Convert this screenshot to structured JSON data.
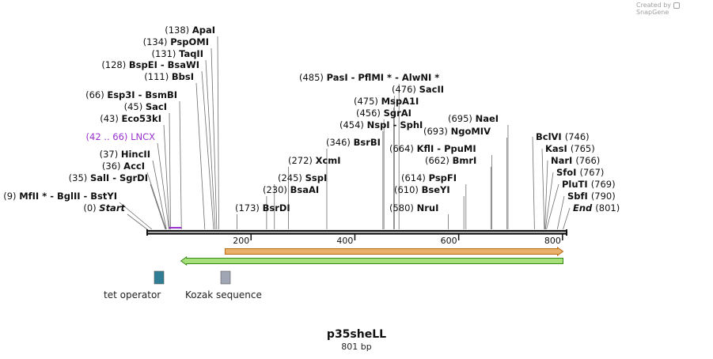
{
  "credit": {
    "text": "Created by",
    "brand": "SnapGene"
  },
  "plasmid": {
    "name": "p35sheLL",
    "length_label": "801 bp",
    "length": 801
  },
  "axis_ticks": [
    {
      "value": 200,
      "label": "200"
    },
    {
      "value": 400,
      "label": "400"
    },
    {
      "value": 600,
      "label": "600"
    },
    {
      "value": 800,
      "label": "800"
    }
  ],
  "left_labels": [
    {
      "pos": 0,
      "pos_label": "(0)",
      "name": "Start",
      "italic": true
    },
    {
      "pos": 9,
      "pos_label": "(9)",
      "name": "MfII * - BglII - BstYI"
    },
    {
      "pos": 35,
      "pos_label": "(35)",
      "name": "SalI - SgrDI"
    },
    {
      "pos": 36,
      "pos_label": "(36)",
      "name": "AccI"
    },
    {
      "pos": 37,
      "pos_label": "(37)",
      "name": "HincII"
    },
    {
      "pos": 42,
      "pos_label": "(42 .. 66)",
      "name": "LNCX",
      "feature": true
    },
    {
      "pos": 43,
      "pos_label": "(43)",
      "name": "Eco53kI"
    },
    {
      "pos": 45,
      "pos_label": "(45)",
      "name": "SacI"
    },
    {
      "pos": 66,
      "pos_label": "(66)",
      "name": "Esp3I - BsmBI"
    },
    {
      "pos": 111,
      "pos_label": "(111)",
      "name": "BbsI"
    },
    {
      "pos": 128,
      "pos_label": "(128)",
      "name": "BspEI - BsaWI"
    },
    {
      "pos": 131,
      "pos_label": "(131)",
      "name": "TaqII"
    },
    {
      "pos": 134,
      "pos_label": "(134)",
      "name": "PspOMI"
    },
    {
      "pos": 138,
      "pos_label": "(138)",
      "name": "ApaI"
    }
  ],
  "middle_labels": [
    {
      "pos": 173,
      "pos_label": "(173)",
      "name": "BsrDI"
    },
    {
      "pos": 230,
      "pos_label": "(230)",
      "name": "BsaAI"
    },
    {
      "pos": 245,
      "pos_label": "(245)",
      "name": "SspI"
    },
    {
      "pos": 272,
      "pos_label": "(272)",
      "name": "XcmI"
    },
    {
      "pos": 346,
      "pos_label": "(346)",
      "name": "BsrBI"
    },
    {
      "pos": 454,
      "pos_label": "(454)",
      "name": "NspI - SphI"
    },
    {
      "pos": 456,
      "pos_label": "(456)",
      "name": "SgrAI"
    },
    {
      "pos": 475,
      "pos_label": "(475)",
      "name": "MspA1I"
    },
    {
      "pos": 476,
      "pos_label": "(476)",
      "name": "SacII"
    },
    {
      "pos": 485,
      "pos_label": "(485)",
      "name": "PasI - PflMI * - AlwNI *"
    }
  ],
  "right_labels": [
    {
      "pos": 580,
      "pos_label": "(580)",
      "name": "NruI"
    },
    {
      "pos": 610,
      "pos_label": "(610)",
      "name": "BseYI"
    },
    {
      "pos": 614,
      "pos_label": "(614)",
      "name": "PspFI"
    },
    {
      "pos": 662,
      "pos_label": "(662)",
      "name": "BmrI"
    },
    {
      "pos": 664,
      "pos_label": "(664)",
      "name": "KflI - PpuMI"
    },
    {
      "pos": 693,
      "pos_label": "(693)",
      "name": "NgoMIV"
    },
    {
      "pos": 695,
      "pos_label": "(695)",
      "name": "NaeI"
    }
  ],
  "end_labels": [
    {
      "pos": 746,
      "pos_label": "(746)",
      "name": "BclVI"
    },
    {
      "pos": 765,
      "pos_label": "(765)",
      "name": "KasI"
    },
    {
      "pos": 766,
      "pos_label": "(766)",
      "name": "NarI"
    },
    {
      "pos": 767,
      "pos_label": "(767)",
      "name": "SfoI"
    },
    {
      "pos": 769,
      "pos_label": "(769)",
      "name": "PluTI"
    },
    {
      "pos": 790,
      "pos_label": "(790)",
      "name": "SbfI"
    },
    {
      "pos": 801,
      "pos_label": "(801)",
      "name": "End",
      "italic": true
    }
  ],
  "arrows": [
    {
      "name": "orange-feature",
      "start": 150,
      "end": 801,
      "direction": "forward",
      "color": "#e8b06a",
      "edge": "#b86a10"
    },
    {
      "name": "green-feature",
      "start": 65,
      "end": 801,
      "direction": "reverse",
      "color": "#a6e07a",
      "edge": "#3a8a1a"
    }
  ],
  "legend": [
    {
      "label": "tet operator",
      "color": "#2f7e95"
    },
    {
      "label": "Kozak sequence",
      "color": "#a0a6b4"
    }
  ],
  "colors": {
    "feature_label": "#9b30d0",
    "backbone": "#111111"
  }
}
